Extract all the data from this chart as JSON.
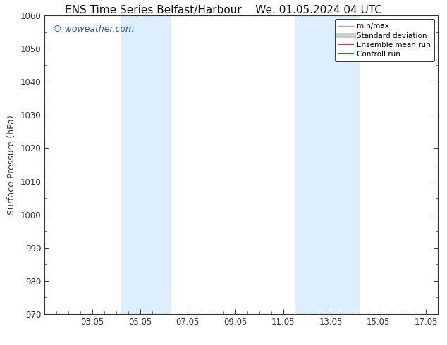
{
  "title_left": "ENS Time Series Belfast/Harbour",
  "title_right": "We. 01.05.2024 04 UTC",
  "ylabel": "Surface Pressure (hPa)",
  "ylim": [
    970,
    1060
  ],
  "yticks": [
    970,
    980,
    990,
    1000,
    1010,
    1020,
    1030,
    1040,
    1050,
    1060
  ],
  "xlim": [
    0.0,
    16.5
  ],
  "xtick_positions": [
    2.0,
    4.0,
    6.0,
    8.0,
    10.0,
    12.0,
    14.0,
    16.0
  ],
  "xtick_labels": [
    "03.05",
    "05.05",
    "07.05",
    "09.05",
    "11.05",
    "13.05",
    "15.05",
    "17.05"
  ],
  "shaded_bands": [
    {
      "x_start": 3.2,
      "x_end": 5.3
    },
    {
      "x_start": 10.5,
      "x_end": 13.2
    }
  ],
  "shaded_color": "#ddeeff",
  "watermark_text": "© woweather.com",
  "watermark_color": "#3355aa",
  "bg_color": "#ffffff",
  "legend_items": [
    {
      "label": "min/max",
      "color": "#aaaaaa",
      "lw": 1.0
    },
    {
      "label": "Standard deviation",
      "color": "#cccccc",
      "lw": 5
    },
    {
      "label": "Ensemble mean run",
      "color": "#ff0000",
      "lw": 1.2
    },
    {
      "label": "Controll run",
      "color": "#006600",
      "lw": 1.2
    }
  ],
  "grid_color": "#cccccc",
  "tick_color": "#333333",
  "spine_color": "#333333",
  "title_fontsize": 11,
  "label_fontsize": 9,
  "tick_fontsize": 8.5,
  "legend_fontsize": 7.5
}
